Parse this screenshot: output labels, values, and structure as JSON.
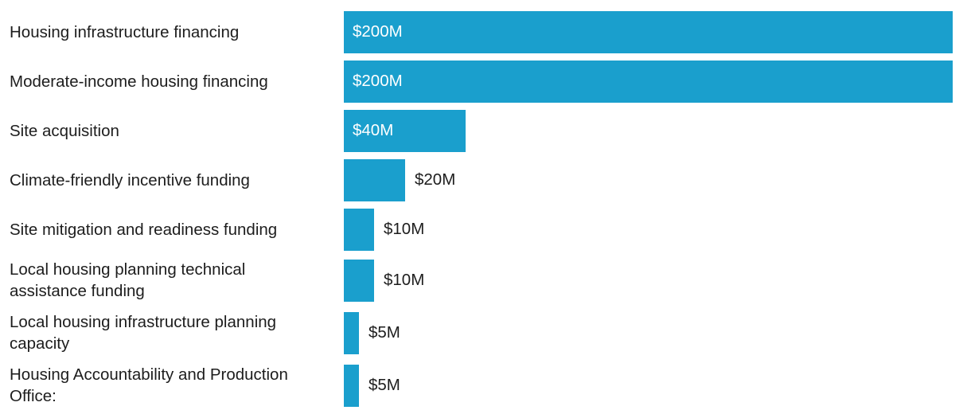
{
  "chart_data": {
    "type": "bar",
    "orientation": "horizontal",
    "categories": [
      "Housing infrastructure financing",
      "Moderate-income housing financing",
      "Site acquisition",
      "Climate-friendly incentive funding",
      "Site mitigation and readiness funding",
      "Local housing planning technical assistance funding",
      "Local housing infrastructure planning capacity",
      "Housing Accountability and Production Office:"
    ],
    "label_lines": [
      [
        "Housing infrastructure financing"
      ],
      [
        "Moderate-income housing financing"
      ],
      [
        "Site acquisition"
      ],
      [
        "Climate-friendly incentive funding"
      ],
      [
        "Site mitigation and readiness funding"
      ],
      [
        "Local housing planning technical",
        "assistance funding"
      ],
      [
        "Local housing infrastructure planning",
        "capacity"
      ],
      [
        "Housing Accountability and Production",
        "Office:"
      ]
    ],
    "values": [
      200,
      200,
      40,
      20,
      10,
      10,
      5,
      5
    ],
    "value_labels": [
      "$200M",
      "$200M",
      "$40M",
      "$20M",
      "$10M",
      "$10M",
      "$5M",
      "$5M"
    ],
    "value_label_position": [
      "inside",
      "inside",
      "inside",
      "outside",
      "outside",
      "outside",
      "outside",
      "outside"
    ],
    "xlim": [
      0,
      200
    ],
    "grid": false,
    "legend": "none",
    "axes_visible": false,
    "colors": {
      "bar": "#1a9fcd",
      "value_label_inside": "#ffffff",
      "text": "#1d1d1d",
      "background": "#ffffff"
    }
  }
}
